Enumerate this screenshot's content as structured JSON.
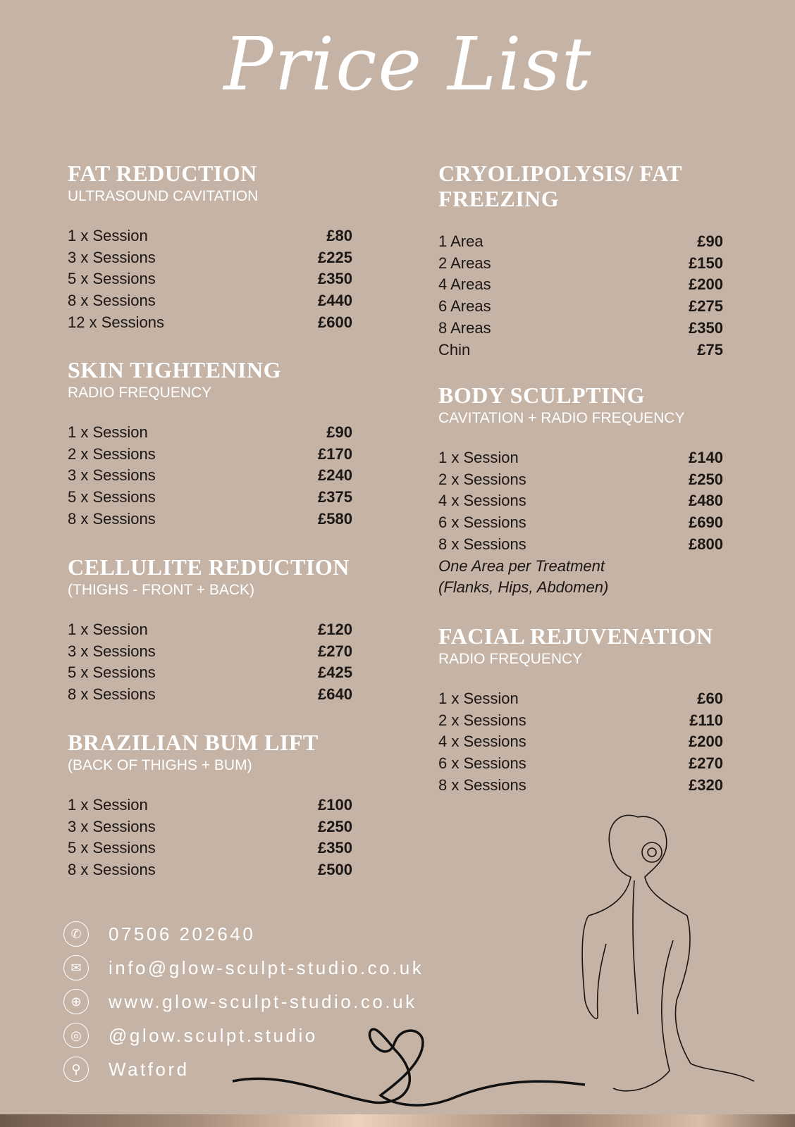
{
  "title": "Price List",
  "left_column": [
    {
      "title": "FAT REDUCTION",
      "subtitle": "ULTRASOUND CAVITATION",
      "items": [
        {
          "label": "1 x  Session",
          "price": "£80"
        },
        {
          "label": "3 x Sessions",
          "price": "£225"
        },
        {
          "label": "5 x Sessions",
          "price": "£350"
        },
        {
          "label": "8 x Sessions",
          "price": "£440"
        },
        {
          "label": "12 x Sessions",
          "price": "£600"
        }
      ]
    },
    {
      "title": "SKIN TIGHTENING",
      "subtitle": "RADIO FREQUENCY",
      "items": [
        {
          "label": "1 x  Session",
          "price": "£90"
        },
        {
          "label": "2 x Sessions",
          "price": "£170"
        },
        {
          "label": "3 x Sessions",
          "price": "£240"
        },
        {
          "label": "5 x Sessions",
          "price": "£375"
        },
        {
          "label": "8 x Sessions",
          "price": "£580"
        }
      ]
    },
    {
      "title": "CELLULITE REDUCTION",
      "subtitle": "(THIGHS - FRONT + BACK)",
      "items": [
        {
          "label": "1 x  Session",
          "price": "£120"
        },
        {
          "label": "3 x Sessions",
          "price": "£270"
        },
        {
          "label": "5 x Sessions",
          "price": "£425"
        },
        {
          "label": "8 x Sessions",
          "price": "£640"
        }
      ]
    },
    {
      "title": "BRAZILIAN BUM LIFT",
      "subtitle": "(BACK OF THIGHS + BUM)",
      "items": [
        {
          "label": "1 x  Session",
          "price": "£100"
        },
        {
          "label": "3 x Sessions",
          "price": "£250"
        },
        {
          "label": "5 x Sessions",
          "price": "£350"
        },
        {
          "label": "8 x Sessions",
          "price": "£500"
        }
      ]
    }
  ],
  "right_column": [
    {
      "title": "CRYOLIPOLYSIS/ FAT FREEZING",
      "subtitle": "",
      "items": [
        {
          "label": "1 Area",
          "price": "£90"
        },
        {
          "label": "2 Areas",
          "price": "£150"
        },
        {
          "label": "4 Areas",
          "price": "£200"
        },
        {
          "label": "6 Areas",
          "price": "£275"
        },
        {
          "label": "8 Areas",
          "price": "£350"
        },
        {
          "label": "Chin",
          "price": "£75"
        }
      ]
    },
    {
      "title": "BODY SCULPTING",
      "subtitle": "CAVITATION + RADIO FREQUENCY",
      "items": [
        {
          "label": "1 x  Session",
          "price": "£140"
        },
        {
          "label": "2 x Sessions",
          "price": "£250"
        },
        {
          "label": "4 x Sessions",
          "price": "£480"
        },
        {
          "label": "6 x Sessions",
          "price": "£690"
        },
        {
          "label": "8 x Sessions",
          "price": "£800"
        }
      ],
      "notes": [
        "One Area per Treatment",
        "(Flanks, Hips, Abdomen)"
      ]
    },
    {
      "title": "FACIAL REJUVENATION",
      "subtitle": "RADIO FREQUENCY",
      "items": [
        {
          "label": "1 x  Session",
          "price": "£60"
        },
        {
          "label": "2 x Sessions",
          "price": "£110"
        },
        {
          "label": "4 x Sessions",
          "price": "£200"
        },
        {
          "label": "6 x Sessions",
          "price": "£270"
        },
        {
          "label": "8 x Sessions",
          "price": "£320"
        }
      ]
    }
  ],
  "contacts": [
    {
      "icon": "phone-icon",
      "glyph": "✆",
      "text": "07506 202640"
    },
    {
      "icon": "mail-icon",
      "glyph": "✉",
      "text": "info@glow-sculpt-studio.co.uk"
    },
    {
      "icon": "globe-icon",
      "glyph": "⊕",
      "text": "www.glow-sculpt-studio.co.uk"
    },
    {
      "icon": "instagram-icon",
      "glyph": "◎",
      "text": "@glow.sculpt.studio"
    },
    {
      "icon": "location-pin-icon",
      "glyph": "⚲",
      "text": "Watford"
    }
  ],
  "colors": {
    "background": "#c5b3a6",
    "heading": "#ffffff",
    "text": "#1c1714"
  }
}
